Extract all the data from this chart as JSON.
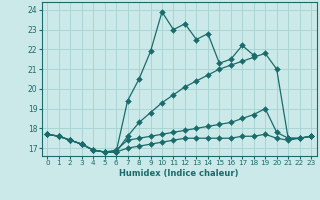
{
  "title": "",
  "xlabel": "Humidex (Indice chaleur)",
  "ylabel": "",
  "xlim": [
    -0.5,
    23.5
  ],
  "ylim": [
    16.6,
    24.4
  ],
  "yticks": [
    17,
    18,
    19,
    20,
    21,
    22,
    23,
    24
  ],
  "xticks": [
    0,
    1,
    2,
    3,
    4,
    5,
    6,
    7,
    8,
    9,
    10,
    11,
    12,
    13,
    14,
    15,
    16,
    17,
    18,
    19,
    20,
    21,
    22,
    23
  ],
  "bg_color": "#cce9e9",
  "grid_color": "#aad4d4",
  "line_color": "#1a6b6b",
  "lines": [
    {
      "x": [
        0,
        1,
        2,
        3,
        4,
        5,
        6,
        7,
        8,
        9,
        10,
        11,
        12,
        13,
        14,
        15,
        16,
        17,
        18,
        19,
        20,
        21,
        22,
        23
      ],
      "y": [
        17.7,
        17.6,
        17.4,
        17.2,
        16.9,
        16.8,
        16.8,
        19.4,
        20.5,
        21.9,
        23.9,
        23.0,
        23.3,
        22.5,
        22.8,
        21.3,
        21.5,
        22.2,
        21.7,
        null,
        null,
        null,
        null,
        null
      ],
      "marker": true,
      "markersize": 3
    },
    {
      "x": [
        0,
        1,
        2,
        3,
        4,
        5,
        6,
        7,
        8,
        9,
        10,
        11,
        12,
        13,
        14,
        15,
        16,
        17,
        18,
        19,
        20,
        21,
        22,
        23
      ],
      "y": [
        17.7,
        17.6,
        17.4,
        17.2,
        16.9,
        16.8,
        16.8,
        17.6,
        18.3,
        18.8,
        19.3,
        19.7,
        20.1,
        20.4,
        20.7,
        21.0,
        21.2,
        21.4,
        21.6,
        21.8,
        21.0,
        17.5,
        17.5,
        17.6
      ],
      "marker": true,
      "markersize": 3
    },
    {
      "x": [
        0,
        1,
        2,
        3,
        4,
        5,
        6,
        7,
        8,
        9,
        10,
        11,
        12,
        13,
        14,
        15,
        16,
        17,
        18,
        19,
        20,
        21,
        22,
        23
      ],
      "y": [
        17.7,
        17.6,
        17.4,
        17.2,
        16.9,
        16.8,
        16.9,
        17.4,
        17.5,
        17.6,
        17.7,
        17.8,
        17.9,
        18.0,
        18.1,
        18.2,
        18.3,
        18.5,
        18.7,
        19.0,
        17.8,
        17.5,
        17.5,
        17.6
      ],
      "marker": true,
      "markersize": 3
    },
    {
      "x": [
        0,
        1,
        2,
        3,
        4,
        5,
        6,
        7,
        8,
        9,
        10,
        11,
        12,
        13,
        14,
        15,
        16,
        17,
        18,
        19,
        20,
        21,
        22,
        23
      ],
      "y": [
        17.7,
        17.6,
        17.4,
        17.2,
        16.9,
        16.8,
        16.8,
        17.0,
        17.1,
        17.2,
        17.3,
        17.4,
        17.5,
        17.5,
        17.5,
        17.5,
        17.5,
        17.6,
        17.6,
        17.7,
        17.5,
        17.4,
        17.5,
        17.6
      ],
      "marker": true,
      "markersize": 3
    }
  ]
}
